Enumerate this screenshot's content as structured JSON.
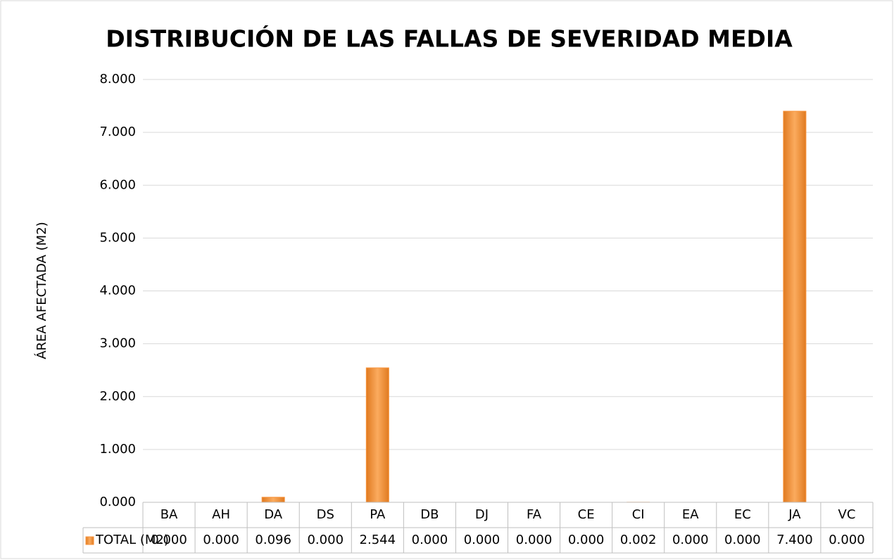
{
  "chart_data": {
    "type": "bar",
    "title": "DISTRIBUCIÓN DE LAS FALLAS DE SEVERIDAD MEDIA",
    "y_label": "ÁREA AFECTADA (M2)",
    "categories": [
      "BA",
      "AH",
      "DA",
      "DS",
      "PA",
      "DB",
      "DJ",
      "FA",
      "CE",
      "CI",
      "EA",
      "EC",
      "JA",
      "VC"
    ],
    "series": [
      {
        "name": "TOTAL (M2)",
        "color": "#f7923a",
        "values": [
          0,
          0,
          0.096,
          0,
          2.544,
          0,
          0,
          0,
          0,
          0.002,
          0,
          0,
          7.4,
          0
        ],
        "value_labels": [
          "0.000",
          "0.000",
          "0.096",
          "0.000",
          "2.544",
          "0.000",
          "0.000",
          "0.000",
          "0.000",
          "0.002",
          "0.000",
          "0.000",
          "7.400",
          "0.000"
        ]
      }
    ],
    "ylim": [
      0,
      8
    ],
    "yticks": [
      {
        "value": 0,
        "label": "0.000"
      },
      {
        "value": 1,
        "label": "1.000"
      },
      {
        "value": 2,
        "label": "2.000"
      },
      {
        "value": 3,
        "label": "3.000"
      },
      {
        "value": 4,
        "label": "4.000"
      },
      {
        "value": 5,
        "label": "5.000"
      },
      {
        "value": 6,
        "label": "6.000"
      },
      {
        "value": 7,
        "label": "7.000"
      },
      {
        "value": 8,
        "label": "8.000"
      }
    ],
    "grid": true,
    "data_table": true
  }
}
